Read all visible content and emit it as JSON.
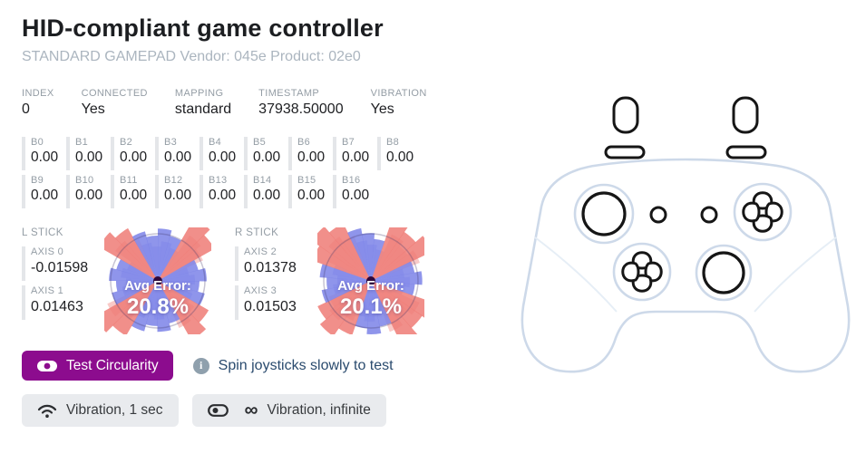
{
  "header": {
    "title": "HID-compliant game controller",
    "subtitle": "STANDARD GAMEPAD Vendor: 045e Product: 02e0"
  },
  "info": [
    {
      "label": "INDEX",
      "value": "0"
    },
    {
      "label": "CONNECTED",
      "value": "Yes"
    },
    {
      "label": "MAPPING",
      "value": "standard"
    },
    {
      "label": "TIMESTAMP",
      "value": "37938.50000"
    },
    {
      "label": "VIBRATION",
      "value": "Yes"
    }
  ],
  "buttons": [
    {
      "label": "B0",
      "value": "0.00"
    },
    {
      "label": "B1",
      "value": "0.00"
    },
    {
      "label": "B2",
      "value": "0.00"
    },
    {
      "label": "B3",
      "value": "0.00"
    },
    {
      "label": "B4",
      "value": "0.00"
    },
    {
      "label": "B5",
      "value": "0.00"
    },
    {
      "label": "B6",
      "value": "0.00"
    },
    {
      "label": "B7",
      "value": "0.00"
    },
    {
      "label": "B8",
      "value": "0.00"
    },
    {
      "label": "B9",
      "value": "0.00"
    },
    {
      "label": "B10",
      "value": "0.00"
    },
    {
      "label": "B11",
      "value": "0.00"
    },
    {
      "label": "B12",
      "value": "0.00"
    },
    {
      "label": "B13",
      "value": "0.00"
    },
    {
      "label": "B14",
      "value": "0.00"
    },
    {
      "label": "B15",
      "value": "0.00"
    },
    {
      "label": "B16",
      "value": "0.00"
    }
  ],
  "buttons_row_split": 9,
  "sticks": {
    "left": {
      "label": "L STICK",
      "axes": [
        {
          "label": "AXIS 0",
          "value": "-0.01598"
        },
        {
          "label": "AXIS 1",
          "value": "0.01463"
        }
      ],
      "avg_error_label": "Avg Error:",
      "avg_error": "20.8%"
    },
    "right": {
      "label": "R STICK",
      "axes": [
        {
          "label": "AXIS 2",
          "value": "0.01378"
        },
        {
          "label": "AXIS 3",
          "value": "0.01503"
        }
      ],
      "avg_error_label": "Avg Error:",
      "avg_error": "20.1%"
    }
  },
  "actions": {
    "test_circularity": "Test Circularity",
    "hint": "Spin joysticks slowly to test",
    "vibration_short": "Vibration, 1 sec",
    "vibration_infinite": "Vibration, infinite",
    "infinity_glyph": "∞",
    "info_glyph": "i"
  },
  "colors": {
    "accent_purple": "#8c0c8e",
    "wedge_red": "#ef7b76",
    "wedge_blue": "#7b82e8",
    "center_dot": "#31093a",
    "controller_outline": "#cdd9e9",
    "controller_ink": "#161616"
  }
}
